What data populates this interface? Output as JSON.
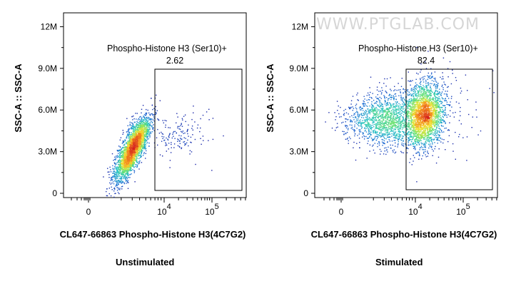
{
  "watermark": "WWW.PTGLAB.COM",
  "chart_data": [
    {
      "type": "scatter",
      "panel": "left",
      "caption": "Unstimulated",
      "xlabel": "CL647-66863 Phospho-Histone H3(4C7G2)",
      "ylabel": "SSC-A :: SSC-A",
      "xscale": "biexponential",
      "yticks": [
        "0",
        "3.0M",
        "6.0M",
        "9.0M",
        "12M"
      ],
      "ytick_values": [
        0,
        3000000,
        6000000,
        9000000,
        12000000
      ],
      "ylim": [
        0,
        13000000
      ],
      "xticks": [
        {
          "base": "0",
          "exp": ""
        },
        {
          "base": "10",
          "exp": "4"
        },
        {
          "base": "10",
          "exp": "5"
        }
      ],
      "gate": {
        "name": "Phospho-Histone H3 (Ser10)+",
        "value": "2.62"
      },
      "colormap": [
        "#1a1aa0",
        "#1f6fd6",
        "#27c4c4",
        "#6ee36b",
        "#f0e433",
        "#f5901d",
        "#d42020"
      ]
    },
    {
      "type": "scatter",
      "panel": "right",
      "caption": "Stimulated",
      "xlabel": "CL647-66863 Phospho-Histone H3(4C7G2)",
      "ylabel": "SSC-A :: SSC-A",
      "xscale": "biexponential",
      "yticks": [
        "0",
        "3.0M",
        "6.0M",
        "9.0M",
        "12M"
      ],
      "ytick_values": [
        0,
        3000000,
        6000000,
        9000000,
        12000000
      ],
      "ylim": [
        0,
        13000000
      ],
      "xticks": [
        {
          "base": "0",
          "exp": ""
        },
        {
          "base": "10",
          "exp": "4"
        },
        {
          "base": "10",
          "exp": "5"
        }
      ],
      "gate": {
        "name": "Phospho-Histone H3 (Ser10)+",
        "value": "82.4"
      },
      "colormap": [
        "#1a1aa0",
        "#1f6fd6",
        "#27c4c4",
        "#6ee36b",
        "#f0e433",
        "#f5901d",
        "#d42020"
      ]
    }
  ]
}
